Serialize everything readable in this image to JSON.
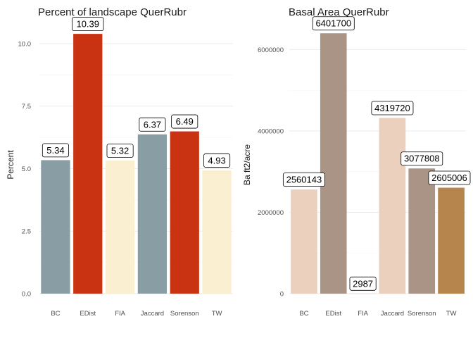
{
  "chart_data": [
    {
      "type": "bar",
      "title": "Percent of landscape  QuerRubr",
      "xlabel": "",
      "ylabel": "Percent",
      "categories": [
        "BC",
        "EDist",
        "FIA",
        "Jaccard",
        "Sorenson",
        "TW"
      ],
      "values": [
        5.34,
        10.39,
        5.32,
        6.37,
        6.49,
        4.93
      ],
      "data_labels": [
        "5.34",
        "10.39",
        "5.32",
        "6.37",
        "6.49",
        "4.93"
      ],
      "colors": [
        "#899da4",
        "#c93312",
        "#faefd1",
        "#899da4",
        "#c93312",
        "#faefd1"
      ],
      "ylim": [
        0,
        10.9
      ],
      "yticks": [
        0,
        2.5,
        5,
        7.5,
        10
      ],
      "ytick_labels": [
        "0.0",
        "2.5",
        "5.0",
        "7.5",
        "10.0"
      ],
      "grid": true,
      "legend": "none"
    },
    {
      "type": "bar",
      "title": "Basal Area  QuerRubr",
      "xlabel": "",
      "ylabel": "Ba ft2/acre",
      "categories": [
        "BC",
        "EDist",
        "FIA",
        "Jaccard",
        "Sorenson",
        "TW"
      ],
      "values": [
        2560143,
        6401700,
        2987,
        4319720,
        3077808,
        2605006
      ],
      "data_labels": [
        "2560143",
        "6401700",
        "2987",
        "4319720",
        "3077808",
        "2605006"
      ],
      "colors": [
        "#ebd0bd",
        "#aa9486",
        "#ebd0bd",
        "#ebd0bd",
        "#aa9486",
        "#b6854d"
      ],
      "ylim": [
        0,
        6700000
      ],
      "yticks": [
        0,
        2000000,
        4000000,
        6000000
      ],
      "ytick_labels": [
        "0",
        "2000000",
        "4000000",
        "6000000"
      ],
      "grid": true,
      "legend": "none"
    }
  ]
}
